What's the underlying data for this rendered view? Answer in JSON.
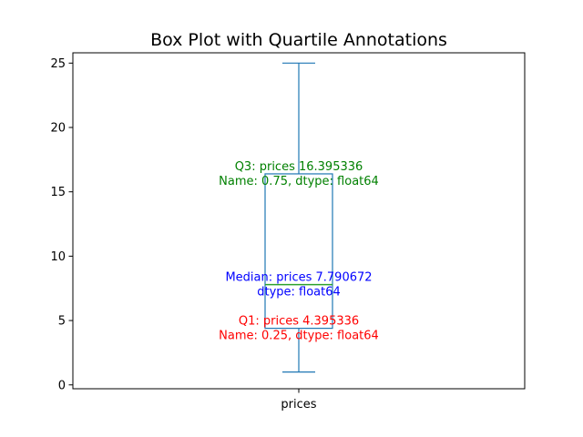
{
  "chart_data": {
    "type": "box",
    "title": "Box Plot with Quartile Annotations",
    "xlabel": "",
    "ylabel": "",
    "categories": [
      "prices"
    ],
    "ylim": [
      -0.3,
      25.8
    ],
    "yticks": [
      0,
      5,
      10,
      15,
      20,
      25
    ],
    "grid": false,
    "legend": "none",
    "box": {
      "whisker_low": 1.0,
      "q1": 4.395336,
      "median": 7.790672,
      "q3": 16.395336,
      "whisker_high": 25.0
    },
    "annotations": {
      "q3": {
        "lines": [
          "Q3: prices    16.395336",
          "Name: 0.75, dtype: float64"
        ],
        "color": "#008000"
      },
      "median": {
        "lines": [
          "Median: prices    7.790672",
          "dtype: float64"
        ],
        "color": "#0000ff"
      },
      "q1": {
        "lines": [
          "Q1: prices    4.395336",
          "Name: 0.25, dtype: float64"
        ],
        "color": "#ff0000"
      }
    },
    "colors": {
      "box": "#1f77b4",
      "median": "#2ca02c",
      "axes": "#000000"
    }
  }
}
